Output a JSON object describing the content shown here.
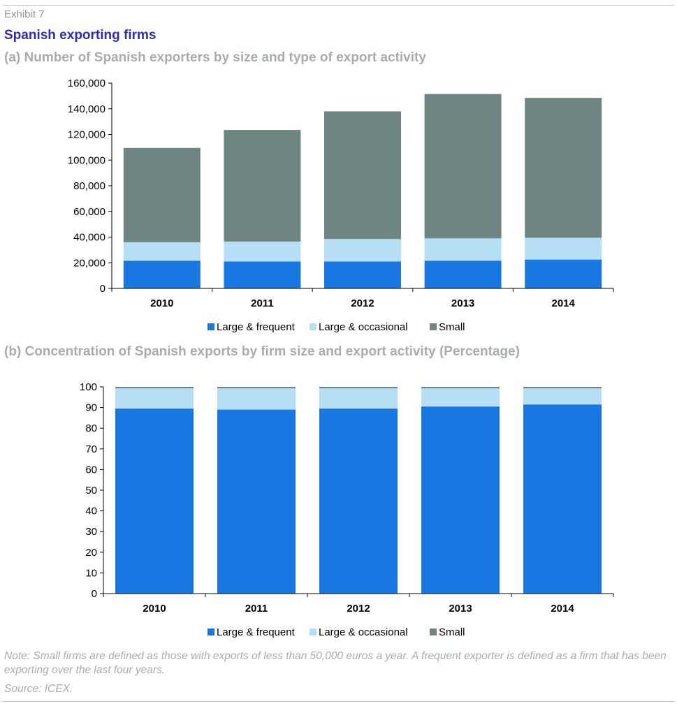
{
  "header": {
    "exhibit": "Exhibit 7",
    "title": "Spanish exporting firms"
  },
  "footer": {
    "note": "Note: Small firms are defined as those with exports of less than 50,000 euros a year. A frequent exporter is defined as a firm that has been exporting over the last four years.",
    "source": "Source: ICEX."
  },
  "colors": {
    "large_frequent": "#1877e0",
    "large_occasional": "#b6def5",
    "small": "#6e8584",
    "title": "#2d2db3",
    "subtitle": "#a5aeac"
  },
  "chart_data": [
    {
      "type": "bar",
      "stacked": true,
      "title": "(a) Number of Spanish exporters by size and type of export activity",
      "xlabel": "",
      "ylabel": "",
      "categories": [
        "2010",
        "2011",
        "2012",
        "2013",
        "2014"
      ],
      "ylim": [
        0,
        160000
      ],
      "yticks": [
        0,
        20000,
        40000,
        60000,
        80000,
        100000,
        120000,
        140000,
        160000
      ],
      "ytick_labels": [
        "0",
        "20,000",
        "40,000",
        "60,000",
        "80,000",
        "100,000",
        "120,000",
        "140,000",
        "160,000"
      ],
      "grid": false,
      "legend": "bottom",
      "series": [
        {
          "name": "Large & frequent",
          "color": "#1877e0",
          "values": [
            21500,
            21000,
            21000,
            21500,
            22500
          ]
        },
        {
          "name": "Large & occasional",
          "color": "#b6def5",
          "values": [
            14500,
            15500,
            17500,
            17500,
            17000
          ]
        },
        {
          "name": "Small",
          "color": "#6e8584",
          "values": [
            73500,
            87000,
            99500,
            112500,
            109000
          ]
        }
      ]
    },
    {
      "type": "bar",
      "stacked": true,
      "title": "(b) Concentration of Spanish exports by firm size and export activity (Percentage)",
      "xlabel": "",
      "ylabel": "",
      "categories": [
        "2010",
        "2011",
        "2012",
        "2013",
        "2014"
      ],
      "ylim": [
        0,
        100
      ],
      "yticks": [
        0,
        10,
        20,
        30,
        40,
        50,
        60,
        70,
        80,
        90,
        100
      ],
      "ytick_labels": [
        "0",
        "10",
        "20",
        "30",
        "40",
        "50",
        "60",
        "70",
        "80",
        "90",
        "100"
      ],
      "grid": false,
      "legend": "bottom",
      "series": [
        {
          "name": "Large & frequent",
          "color": "#1877e0",
          "values": [
            89.5,
            89.0,
            89.5,
            90.5,
            91.5
          ]
        },
        {
          "name": "Large & occasional",
          "color": "#b6def5",
          "values": [
            9.8,
            10.3,
            9.8,
            8.8,
            7.8
          ]
        },
        {
          "name": "Small",
          "color": "#6e8584",
          "values": [
            0.7,
            0.7,
            0.7,
            0.7,
            0.7
          ]
        }
      ]
    }
  ]
}
